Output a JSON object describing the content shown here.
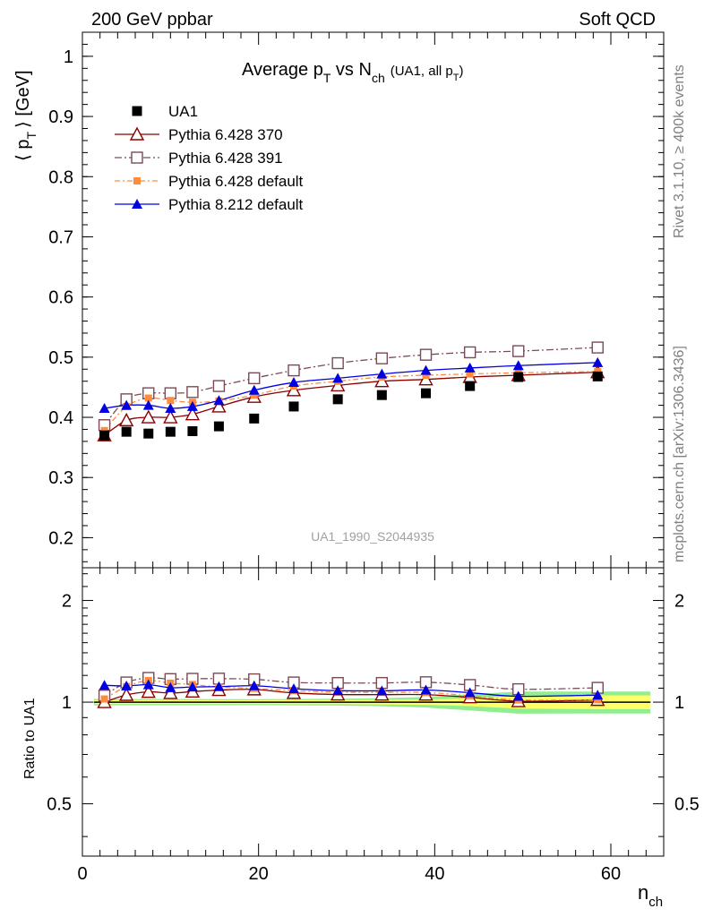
{
  "header": {
    "left": "200 GeV ppbar",
    "right": "Soft QCD",
    "side_top": "Rivet 3.1.10, ≥ 400k events",
    "side_bottom": "mcplots.cern.ch [arXiv:1306.3436]",
    "analysis_id": "UA1_1990_S2044935"
  },
  "colors": {
    "data": "#000000",
    "p370": "#8b0000",
    "p391": "#7a4a55",
    "pdefault": "#ff8c3a",
    "p8": "#0000e0",
    "band_inner": "#ffff66",
    "band_outer": "#90ee90",
    "ref_line": "#000000"
  },
  "chart_data": {
    "type": "line",
    "title": "Average pT vs Nch (UA1, all pT)",
    "title_parts": {
      "main": "Average p",
      "sub1": "T",
      "mid": " vs N",
      "sub2": "ch",
      "small": "(UA1, all p",
      "small_sub": "T",
      "small_end": ")"
    },
    "xlabel": "n",
    "xlabel_sub": "ch",
    "ylabel": "⟨ p",
    "ylabel_sub": "T",
    "ylabel_end": "⟩ [GeV]",
    "ratio_ylabel": "Ratio to UA1",
    "xlim": [
      0,
      66
    ],
    "ylim": [
      0.15,
      1.04
    ],
    "ratio_ylim": [
      0.35,
      2.5
    ],
    "x_ticks": [
      "0",
      "20",
      "40",
      "60"
    ],
    "y_ticks": [
      "0.2",
      "0.3",
      "0.4",
      "0.5",
      "0.6",
      "0.7",
      "0.8",
      "0.9",
      "1"
    ],
    "ratio_ticks": [
      "0.5",
      "1",
      "2"
    ],
    "x": [
      2.5,
      5,
      7.5,
      10,
      12.5,
      15.5,
      19.5,
      24,
      29,
      34,
      39,
      44,
      49.5,
      58.5
    ],
    "data": {
      "name": "UA1",
      "values": [
        0.37,
        0.376,
        0.373,
        0.376,
        0.377,
        0.385,
        0.398,
        0.418,
        0.43,
        0.437,
        0.44,
        0.452,
        0.467,
        0.468
      ],
      "band_inner": [
        0.005,
        0.005,
        0.005,
        0.005,
        0.005,
        0.005,
        0.005,
        0.006,
        0.006,
        0.007,
        0.008,
        0.012,
        0.02,
        0.022
      ],
      "band_outer": [
        0.008,
        0.008,
        0.008,
        0.008,
        0.008,
        0.008,
        0.008,
        0.009,
        0.01,
        0.012,
        0.016,
        0.025,
        0.035,
        0.035
      ]
    },
    "series": [
      {
        "name": "Pythia 6.428 370",
        "key": "p370",
        "marker": "triangle-open",
        "dash": "",
        "values": [
          0.37,
          0.395,
          0.4,
          0.4,
          0.405,
          0.418,
          0.434,
          0.445,
          0.453,
          0.46,
          0.463,
          0.467,
          0.47,
          0.475
        ]
      },
      {
        "name": "Pythia 6.428 391",
        "key": "p391",
        "marker": "square-open",
        "dash": "8,3,2,3",
        "values": [
          0.387,
          0.43,
          0.44,
          0.44,
          0.442,
          0.452,
          0.465,
          0.478,
          0.49,
          0.498,
          0.504,
          0.508,
          0.51,
          0.516
        ]
      },
      {
        "name": "Pythia 6.428 default",
        "key": "pdefault",
        "marker": "square-filled",
        "dash": "6,3,2,3",
        "values": [
          0.378,
          0.418,
          0.432,
          0.428,
          0.425,
          0.427,
          0.437,
          0.452,
          0.46,
          0.467,
          0.47,
          0.472,
          0.474,
          0.476
        ]
      },
      {
        "name": "Pythia 8.212 default",
        "key": "p8",
        "marker": "triangle-filled",
        "dash": "",
        "values": [
          0.415,
          0.42,
          0.42,
          0.415,
          0.418,
          0.428,
          0.445,
          0.458,
          0.465,
          0.472,
          0.478,
          0.482,
          0.486,
          0.491
        ]
      }
    ]
  }
}
